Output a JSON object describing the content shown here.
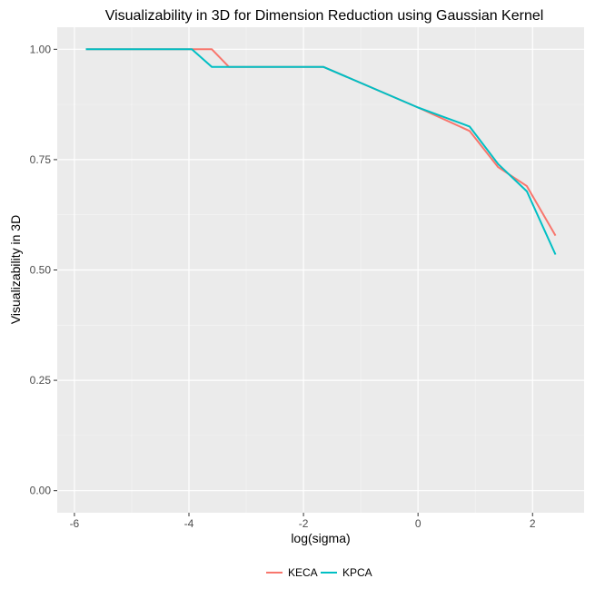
{
  "chart_data": {
    "type": "line",
    "title": "Visualizability in 3D for Dimension Reduction using Gaussian Kernel",
    "xlabel": "log(sigma)",
    "ylabel": "Visualizability in 3D",
    "xlim": [
      -6.3,
      2.9
    ],
    "ylim": [
      -0.05,
      1.05
    ],
    "x_ticks": [
      -6,
      -4,
      -2,
      0,
      2
    ],
    "x_tick_labels": [
      "-6",
      "-4",
      "-2",
      "0",
      "2"
    ],
    "y_ticks": [
      0,
      0.25,
      0.5,
      0.75,
      1.0
    ],
    "y_tick_labels": [
      "0.00",
      "0.25",
      "0.50",
      "0.75",
      "1.00"
    ],
    "grid": true,
    "legend_position": "bottom",
    "series": [
      {
        "name": "KECA",
        "color": "#F8766D",
        "x": [
          -5.8,
          -3.95,
          -3.6,
          -3.3,
          -1.65,
          0,
          0.9,
          1.4,
          1.9,
          2.4
        ],
        "y": [
          1.0,
          1.0,
          1.0,
          0.96,
          0.96,
          0.868,
          0.815,
          0.733,
          0.69,
          0.578
        ]
      },
      {
        "name": "KPCA",
        "color": "#00BFC4",
        "x": [
          -5.8,
          -3.95,
          -3.6,
          -1.65,
          0,
          0.9,
          1.4,
          1.9,
          2.4
        ],
        "y": [
          1.0,
          1.0,
          0.96,
          0.96,
          0.868,
          0.825,
          0.74,
          0.678,
          0.535
        ]
      }
    ]
  }
}
